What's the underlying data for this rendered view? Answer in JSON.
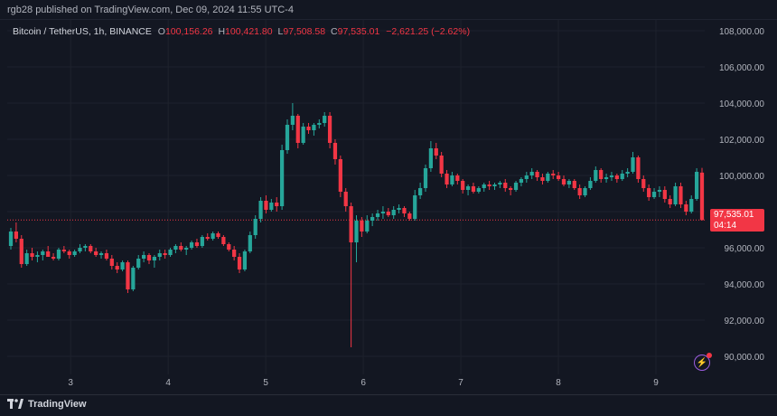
{
  "header": {
    "published_by": "rgb28 published on TradingView.com, Dec 09, 2024 11:55 UTC-4"
  },
  "legend": {
    "symbol": "Bitcoin / TetherUS, 1h, BINANCE",
    "open_key": "O",
    "open": "100,156.26",
    "high_key": "H",
    "high": "100,421.80",
    "low_key": "L",
    "low": "97,508.58",
    "close_key": "C",
    "close": "97,535.01",
    "change": "−2,621.25 (−2.62%)"
  },
  "last_price": {
    "value": "97,535.01",
    "countdown": "04:14"
  },
  "footer": {
    "brand": "TradingView"
  },
  "colors": {
    "up": "#26a69a",
    "down": "#f23645",
    "background": "#131722",
    "grid": "#1e222d"
  },
  "chart_data": {
    "type": "candlestick",
    "ylim": [
      89000,
      108600
    ],
    "y_ticks": [
      90000,
      92000,
      94000,
      96000,
      98000,
      100000,
      102000,
      104000,
      106000,
      108000
    ],
    "y_tick_labels": [
      "90,000.00",
      "92,000.00",
      "94,000.00",
      "96,000.00",
      "98,000.00",
      "100,000.00",
      "102,000.00",
      "104,000.00",
      "106,000.00",
      "108,000.00"
    ],
    "x_range": [
      2.35,
      9.5
    ],
    "x_ticks": [
      3,
      4,
      5,
      6,
      7,
      8,
      9
    ],
    "x_tick_labels": [
      "3",
      "4",
      "5",
      "6",
      "7",
      "8",
      "9"
    ],
    "last_price": 97535.01,
    "candles": [
      {
        "o": 96100,
        "h": 97100,
        "l": 95900,
        "c": 96900
      },
      {
        "o": 96900,
        "h": 97400,
        "l": 96300,
        "c": 96500
      },
      {
        "o": 96500,
        "h": 96700,
        "l": 94900,
        "c": 95100
      },
      {
        "o": 95100,
        "h": 95900,
        "l": 95000,
        "c": 95700
      },
      {
        "o": 95700,
        "h": 96000,
        "l": 95300,
        "c": 95500
      },
      {
        "o": 95500,
        "h": 95800,
        "l": 95200,
        "c": 95600
      },
      {
        "o": 95600,
        "h": 95900,
        "l": 95300,
        "c": 95800
      },
      {
        "o": 95800,
        "h": 96100,
        "l": 95500,
        "c": 95500
      },
      {
        "o": 95500,
        "h": 95700,
        "l": 95300,
        "c": 95400
      },
      {
        "o": 95400,
        "h": 96000,
        "l": 95300,
        "c": 95900
      },
      {
        "o": 95900,
        "h": 96100,
        "l": 95700,
        "c": 95800
      },
      {
        "o": 95800,
        "h": 95900,
        "l": 95400,
        "c": 95600
      },
      {
        "o": 95600,
        "h": 95900,
        "l": 95500,
        "c": 95800
      },
      {
        "o": 95800,
        "h": 96200,
        "l": 95700,
        "c": 96000
      },
      {
        "o": 96000,
        "h": 96200,
        "l": 95800,
        "c": 96100
      },
      {
        "o": 96100,
        "h": 96200,
        "l": 95700,
        "c": 95800
      },
      {
        "o": 95800,
        "h": 96000,
        "l": 95500,
        "c": 95600
      },
      {
        "o": 95600,
        "h": 95800,
        "l": 95400,
        "c": 95700
      },
      {
        "o": 95700,
        "h": 95900,
        "l": 95300,
        "c": 95400
      },
      {
        "o": 95400,
        "h": 95600,
        "l": 94800,
        "c": 95000
      },
      {
        "o": 95000,
        "h": 95200,
        "l": 94600,
        "c": 94800
      },
      {
        "o": 94800,
        "h": 95300,
        "l": 94700,
        "c": 95200
      },
      {
        "o": 95200,
        "h": 95300,
        "l": 93500,
        "c": 93700
      },
      {
        "o": 93700,
        "h": 95000,
        "l": 93600,
        "c": 94900
      },
      {
        "o": 94900,
        "h": 95600,
        "l": 94800,
        "c": 95400
      },
      {
        "o": 95400,
        "h": 95800,
        "l": 95200,
        "c": 95600
      },
      {
        "o": 95600,
        "h": 95700,
        "l": 95100,
        "c": 95300
      },
      {
        "o": 95300,
        "h": 95600,
        "l": 94900,
        "c": 95500
      },
      {
        "o": 95500,
        "h": 95900,
        "l": 95300,
        "c": 95700
      },
      {
        "o": 95700,
        "h": 95900,
        "l": 95400,
        "c": 95600
      },
      {
        "o": 95600,
        "h": 96000,
        "l": 95500,
        "c": 95900
      },
      {
        "o": 95900,
        "h": 96200,
        "l": 95700,
        "c": 96100
      },
      {
        "o": 96100,
        "h": 96300,
        "l": 95800,
        "c": 95900
      },
      {
        "o": 95900,
        "h": 96100,
        "l": 95600,
        "c": 96000
      },
      {
        "o": 96000,
        "h": 96400,
        "l": 95900,
        "c": 96300
      },
      {
        "o": 96300,
        "h": 96500,
        "l": 96000,
        "c": 96100
      },
      {
        "o": 96100,
        "h": 96700,
        "l": 96000,
        "c": 96600
      },
      {
        "o": 96600,
        "h": 96800,
        "l": 96400,
        "c": 96500
      },
      {
        "o": 96500,
        "h": 96900,
        "l": 96400,
        "c": 96800
      },
      {
        "o": 96800,
        "h": 96900,
        "l": 96500,
        "c": 96600
      },
      {
        "o": 96600,
        "h": 96700,
        "l": 96100,
        "c": 96200
      },
      {
        "o": 96200,
        "h": 96300,
        "l": 95800,
        "c": 95900
      },
      {
        "o": 95900,
        "h": 96100,
        "l": 95300,
        "c": 95500
      },
      {
        "o": 95500,
        "h": 95700,
        "l": 94600,
        "c": 94800
      },
      {
        "o": 94800,
        "h": 95900,
        "l": 94700,
        "c": 95800
      },
      {
        "o": 95800,
        "h": 96900,
        "l": 95700,
        "c": 96700
      },
      {
        "o": 96700,
        "h": 97800,
        "l": 96500,
        "c": 97600
      },
      {
        "o": 97600,
        "h": 98800,
        "l": 97400,
        "c": 98600
      },
      {
        "o": 98600,
        "h": 98900,
        "l": 97900,
        "c": 98100
      },
      {
        "o": 98100,
        "h": 98700,
        "l": 98000,
        "c": 98500
      },
      {
        "o": 98500,
        "h": 98800,
        "l": 98000,
        "c": 98300
      },
      {
        "o": 98300,
        "h": 101700,
        "l": 98100,
        "c": 101400
      },
      {
        "o": 101400,
        "h": 103100,
        "l": 101200,
        "c": 102800
      },
      {
        "o": 102800,
        "h": 104000,
        "l": 102500,
        "c": 103300
      },
      {
        "o": 103300,
        "h": 103400,
        "l": 101500,
        "c": 101800
      },
      {
        "o": 101800,
        "h": 102900,
        "l": 101700,
        "c": 102700
      },
      {
        "o": 102700,
        "h": 102900,
        "l": 102300,
        "c": 102500
      },
      {
        "o": 102500,
        "h": 102900,
        "l": 102200,
        "c": 102800
      },
      {
        "o": 102800,
        "h": 103100,
        "l": 102600,
        "c": 102900
      },
      {
        "o": 102900,
        "h": 103500,
        "l": 102700,
        "c": 103300
      },
      {
        "o": 103300,
        "h": 103500,
        "l": 101500,
        "c": 101800
      },
      {
        "o": 101800,
        "h": 102000,
        "l": 100600,
        "c": 100900
      },
      {
        "o": 100900,
        "h": 101100,
        "l": 98800,
        "c": 99100
      },
      {
        "o": 99100,
        "h": 99300,
        "l": 98000,
        "c": 98300
      },
      {
        "o": 98300,
        "h": 98500,
        "l": 90500,
        "c": 96300
      },
      {
        "o": 96300,
        "h": 97800,
        "l": 95200,
        "c": 97500
      },
      {
        "o": 97500,
        "h": 97700,
        "l": 96600,
        "c": 96900
      },
      {
        "o": 96900,
        "h": 97800,
        "l": 96800,
        "c": 97500
      },
      {
        "o": 97500,
        "h": 97900,
        "l": 97200,
        "c": 97700
      },
      {
        "o": 97700,
        "h": 98100,
        "l": 97500,
        "c": 97900
      },
      {
        "o": 97900,
        "h": 98300,
        "l": 97600,
        "c": 98000
      },
      {
        "o": 98000,
        "h": 98200,
        "l": 97700,
        "c": 97800
      },
      {
        "o": 97800,
        "h": 98300,
        "l": 97600,
        "c": 98100
      },
      {
        "o": 98100,
        "h": 98400,
        "l": 97900,
        "c": 98200
      },
      {
        "o": 98200,
        "h": 98300,
        "l": 97700,
        "c": 97900
      },
      {
        "o": 97900,
        "h": 98000,
        "l": 97500,
        "c": 97600
      },
      {
        "o": 97600,
        "h": 99200,
        "l": 97500,
        "c": 98900
      },
      {
        "o": 98900,
        "h": 99600,
        "l": 98700,
        "c": 99300
      },
      {
        "o": 99300,
        "h": 100600,
        "l": 99100,
        "c": 100400
      },
      {
        "o": 100400,
        "h": 101900,
        "l": 100200,
        "c": 101500
      },
      {
        "o": 101500,
        "h": 101800,
        "l": 100900,
        "c": 101100
      },
      {
        "o": 101100,
        "h": 101300,
        "l": 99900,
        "c": 100100
      },
      {
        "o": 100100,
        "h": 100300,
        "l": 99300,
        "c": 99500
      },
      {
        "o": 99500,
        "h": 100200,
        "l": 99400,
        "c": 100000
      },
      {
        "o": 100000,
        "h": 100100,
        "l": 99500,
        "c": 99700
      },
      {
        "o": 99700,
        "h": 99800,
        "l": 99000,
        "c": 99200
      },
      {
        "o": 99200,
        "h": 99500,
        "l": 98900,
        "c": 99400
      },
      {
        "o": 99400,
        "h": 99600,
        "l": 99000,
        "c": 99100
      },
      {
        "o": 99100,
        "h": 99400,
        "l": 99000,
        "c": 99300
      },
      {
        "o": 99300,
        "h": 99600,
        "l": 99100,
        "c": 99500
      },
      {
        "o": 99500,
        "h": 99700,
        "l": 99200,
        "c": 99400
      },
      {
        "o": 99400,
        "h": 99600,
        "l": 99200,
        "c": 99500
      },
      {
        "o": 99500,
        "h": 99700,
        "l": 99300,
        "c": 99600
      },
      {
        "o": 99600,
        "h": 99800,
        "l": 99100,
        "c": 99300
      },
      {
        "o": 99300,
        "h": 99400,
        "l": 98900,
        "c": 99200
      },
      {
        "o": 99200,
        "h": 99700,
        "l": 99100,
        "c": 99600
      },
      {
        "o": 99600,
        "h": 99900,
        "l": 99400,
        "c": 99800
      },
      {
        "o": 99800,
        "h": 100200,
        "l": 99600,
        "c": 100000
      },
      {
        "o": 100000,
        "h": 100400,
        "l": 99800,
        "c": 100200
      },
      {
        "o": 100200,
        "h": 100300,
        "l": 99700,
        "c": 99900
      },
      {
        "o": 99900,
        "h": 100100,
        "l": 99500,
        "c": 99700
      },
      {
        "o": 99700,
        "h": 100200,
        "l": 99600,
        "c": 100100
      },
      {
        "o": 100100,
        "h": 100300,
        "l": 99800,
        "c": 100000
      },
      {
        "o": 100000,
        "h": 100200,
        "l": 99700,
        "c": 99800
      },
      {
        "o": 99800,
        "h": 100000,
        "l": 99400,
        "c": 99500
      },
      {
        "o": 99500,
        "h": 99800,
        "l": 99300,
        "c": 99700
      },
      {
        "o": 99700,
        "h": 99800,
        "l": 99200,
        "c": 99300
      },
      {
        "o": 99300,
        "h": 99500,
        "l": 98700,
        "c": 98900
      },
      {
        "o": 98900,
        "h": 99400,
        "l": 98800,
        "c": 99300
      },
      {
        "o": 99300,
        "h": 99900,
        "l": 99200,
        "c": 99700
      },
      {
        "o": 99700,
        "h": 100500,
        "l": 99600,
        "c": 100300
      },
      {
        "o": 100300,
        "h": 100400,
        "l": 99600,
        "c": 99800
      },
      {
        "o": 99800,
        "h": 100100,
        "l": 99600,
        "c": 99900
      },
      {
        "o": 99900,
        "h": 100200,
        "l": 99700,
        "c": 100000
      },
      {
        "o": 100000,
        "h": 100100,
        "l": 99600,
        "c": 99800
      },
      {
        "o": 99800,
        "h": 100300,
        "l": 99700,
        "c": 100100
      },
      {
        "o": 100100,
        "h": 100400,
        "l": 99900,
        "c": 100200
      },
      {
        "o": 100200,
        "h": 101300,
        "l": 100100,
        "c": 101000
      },
      {
        "o": 101000,
        "h": 101100,
        "l": 99600,
        "c": 99800
      },
      {
        "o": 99800,
        "h": 100000,
        "l": 99100,
        "c": 99300
      },
      {
        "o": 99300,
        "h": 99500,
        "l": 98600,
        "c": 98800
      },
      {
        "o": 98800,
        "h": 99300,
        "l": 98700,
        "c": 99100
      },
      {
        "o": 99100,
        "h": 99400,
        "l": 98800,
        "c": 99200
      },
      {
        "o": 99200,
        "h": 99400,
        "l": 98500,
        "c": 98700
      },
      {
        "o": 98700,
        "h": 98900,
        "l": 98200,
        "c": 98400
      },
      {
        "o": 98400,
        "h": 99600,
        "l": 98300,
        "c": 99400
      },
      {
        "o": 99400,
        "h": 99600,
        "l": 98200,
        "c": 98400
      },
      {
        "o": 98400,
        "h": 98600,
        "l": 97800,
        "c": 98000
      },
      {
        "o": 98000,
        "h": 98900,
        "l": 97900,
        "c": 98700
      },
      {
        "o": 98700,
        "h": 100400,
        "l": 98600,
        "c": 100200
      },
      {
        "o": 100156.26,
        "h": 100421.8,
        "l": 97508.58,
        "c": 97535.01
      }
    ]
  }
}
